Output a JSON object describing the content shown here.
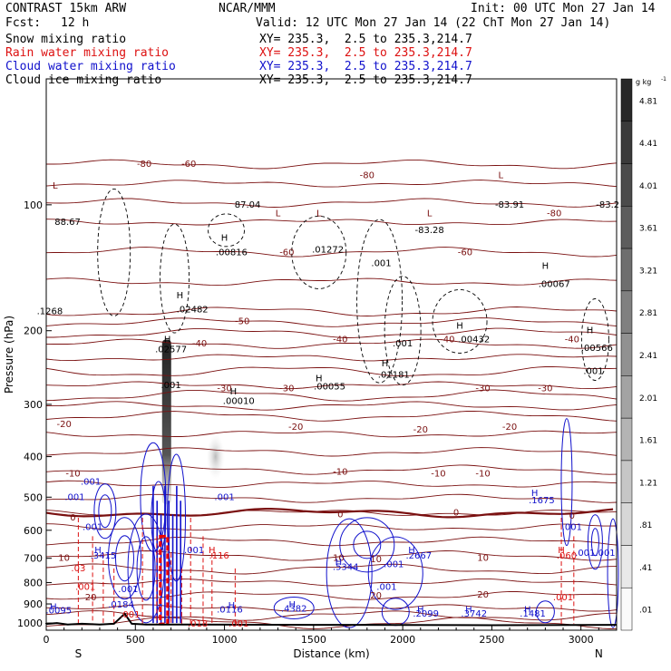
{
  "header": {
    "model": "CONTRAST 15km ARW",
    "fcst_label": "Fcst:",
    "fcst_value": "12 h",
    "center": "NCAR/MMM",
    "init": "Init: 00 UTC Mon 27 Jan 14",
    "valid": "Valid: 12 UTC Mon 27 Jan 14 (22 ChT Mon 27 Jan 14)"
  },
  "fields": [
    {
      "label": "Snow mixing ratio",
      "xy": "XY= 235.3,  2.5 to 235.3,214.7",
      "color": "#000000"
    },
    {
      "label": "Rain water mixing ratio",
      "xy": "XY= 235.3,  2.5 to 235.3,214.7",
      "color": "#dd1111"
    },
    {
      "label": "Cloud water mixing ratio",
      "xy": "XY= 235.3,  2.5 to 235.3,214.7",
      "color": "#1111cc"
    },
    {
      "label": "Cloud ice mixing ratio",
      "xy": "XY= 235.3,  2.5 to 235.3,214.7",
      "color": "#000000"
    }
  ],
  "chart_data": {
    "type": "contour-cross-section",
    "xlabel": "Distance (km)",
    "ylabel": "Pressure (hPa)",
    "xlim": [
      0,
      3200
    ],
    "ylim": [
      1040,
      50
    ],
    "x_ticks": [
      0,
      500,
      1000,
      1500,
      2000,
      2500,
      3000
    ],
    "y_ticks": [
      100,
      200,
      300,
      400,
      500,
      600,
      700,
      800,
      900,
      1000
    ],
    "end_left": "S",
    "end_right": "N",
    "colorbar": {
      "unit": "g kg",
      "unit_exp": "-1",
      "labels": [
        "4.81",
        "4.41",
        "4.01",
        "3.61",
        "3.21",
        "2.81",
        "2.41",
        "2.01",
        "1.61",
        "1.21",
        ".81",
        ".41",
        ".01"
      ]
    },
    "temperature_isotherms": [
      {
        "label": "-80",
        "p": 80
      },
      {
        "label": "-60",
        "p": 110
      },
      {
        "label": "-50",
        "p": 180
      },
      {
        "label": "-40",
        "p": 215
      },
      {
        "label": "-30",
        "p": 270
      },
      {
        "label": "-20",
        "p": 320
      },
      {
        "label": "-10",
        "p": 430
      },
      {
        "label": "0",
        "p": 545
      },
      {
        "label": "10",
        "p": 690
      },
      {
        "label": "20",
        "p": 860
      }
    ],
    "isotherm_labels": [
      {
        "t": "-80",
        "x": 550,
        "p": 80
      },
      {
        "t": "-60",
        "x": 800,
        "p": 80
      },
      {
        "t": "-80",
        "x": 1800,
        "p": 85
      },
      {
        "t": "-80",
        "x": 2850,
        "p": 105
      },
      {
        "t": "-60",
        "x": 1350,
        "p": 130
      },
      {
        "t": "-60",
        "x": 2350,
        "p": 130
      },
      {
        "t": "-50",
        "x": 1100,
        "p": 190
      },
      {
        "t": "-40",
        "x": 860,
        "p": 215
      },
      {
        "t": "-40",
        "x": 1650,
        "p": 210
      },
      {
        "t": "-40",
        "x": 2250,
        "p": 210
      },
      {
        "t": "-40",
        "x": 2950,
        "p": 210
      },
      {
        "t": "-30",
        "x": 1000,
        "p": 275
      },
      {
        "t": "-30",
        "x": 1350,
        "p": 275
      },
      {
        "t": "-30",
        "x": 2450,
        "p": 275
      },
      {
        "t": "-30",
        "x": 2800,
        "p": 275
      },
      {
        "t": "-20",
        "x": 100,
        "p": 335
      },
      {
        "t": "-20",
        "x": 1400,
        "p": 340
      },
      {
        "t": "-20",
        "x": 2100,
        "p": 345
      },
      {
        "t": "-20",
        "x": 2600,
        "p": 340
      },
      {
        "t": "-10",
        "x": 150,
        "p": 440
      },
      {
        "t": "-10",
        "x": 1650,
        "p": 435
      },
      {
        "t": "-10",
        "x": 2200,
        "p": 440
      },
      {
        "t": "-10",
        "x": 2450,
        "p": 440
      },
      {
        "t": "0",
        "x": 150,
        "p": 560
      },
      {
        "t": "0",
        "x": 1650,
        "p": 550
      },
      {
        "t": "0",
        "x": 2300,
        "p": 545
      },
      {
        "t": "0",
        "x": 2950,
        "p": 555
      },
      {
        "t": "10",
        "x": 100,
        "p": 700
      },
      {
        "t": "10",
        "x": 1850,
        "p": 705
      },
      {
        "t": "10",
        "x": 2450,
        "p": 700
      },
      {
        "t": "20",
        "x": 250,
        "p": 870
      },
      {
        "t": "20",
        "x": 1850,
        "p": 860
      },
      {
        "t": "20",
        "x": 2450,
        "p": 855
      }
    ],
    "extrema_labels": [
      {
        "t": "L",
        "x": 50,
        "p": 90,
        "c": "#7a1010"
      },
      {
        "t": "88.67",
        "x": 120,
        "p": 110,
        "c": "#000"
      },
      {
        "t": "L",
        "x": 1530,
        "p": 105,
        "c": "#7a1010"
      },
      {
        "t": "L",
        "x": 2550,
        "p": 85,
        "c": "#7a1010"
      },
      {
        "t": "-83.91",
        "x": 2600,
        "p": 100,
        "c": "#000"
      },
      {
        "t": "-83.2",
        "x": 3150,
        "p": 100,
        "c": "#000"
      },
      {
        "t": "L",
        "x": 1300,
        "p": 105,
        "c": "#7a1010"
      },
      {
        "t": "87.04",
        "x": 1130,
        "p": 100,
        "c": "#000"
      },
      {
        "t": "L",
        "x": 2150,
        "p": 105,
        "c": "#7a1010"
      },
      {
        "t": "-83.28",
        "x": 2150,
        "p": 115,
        "c": "#000"
      },
      {
        "t": "H",
        "x": 1000,
        "p": 120,
        "c": "#000"
      },
      {
        "t": ".00816",
        "x": 1040,
        "p": 130,
        "c": "#000"
      },
      {
        "t": ".01272",
        "x": 1580,
        "p": 128,
        "c": "#000"
      },
      {
        "t": "H",
        "x": 2800,
        "p": 140,
        "c": "#000"
      },
      {
        "t": ".00067",
        "x": 2850,
        "p": 155,
        "c": "#000"
      },
      {
        "t": ".001",
        "x": 1880,
        "p": 138,
        "c": "#000"
      },
      {
        "t": "H",
        "x": 750,
        "p": 165,
        "c": "#000"
      },
      {
        "t": ".02482",
        "x": 820,
        "p": 178,
        "c": "#000"
      },
      {
        "t": ".1268",
        "x": 20,
        "p": 180,
        "c": "#000"
      },
      {
        "t": "H",
        "x": 2320,
        "p": 195,
        "c": "#000"
      },
      {
        "t": ".00432",
        "x": 2400,
        "p": 210,
        "c": "#000"
      },
      {
        "t": "H",
        "x": 3050,
        "p": 200,
        "c": "#000"
      },
      {
        "t": ".00566",
        "x": 3090,
        "p": 220,
        "c": "#000"
      },
      {
        "t": "H",
        "x": 680,
        "p": 210,
        "c": "#000"
      },
      {
        "t": ".02577",
        "x": 700,
        "p": 222,
        "c": "#000"
      },
      {
        "t": ".001",
        "x": 2000,
        "p": 215,
        "c": "#000"
      },
      {
        "t": ".001",
        "x": 3070,
        "p": 250,
        "c": "#000"
      },
      {
        "t": "H",
        "x": 1900,
        "p": 240,
        "c": "#000"
      },
      {
        "t": ".01181",
        "x": 1950,
        "p": 255,
        "c": "#000"
      },
      {
        "t": ".001",
        "x": 700,
        "p": 270,
        "c": "#000"
      },
      {
        "t": "H",
        "x": 1530,
        "p": 260,
        "c": "#000"
      },
      {
        "t": ".00055",
        "x": 1590,
        "p": 272,
        "c": "#000"
      },
      {
        "t": "H",
        "x": 1050,
        "p": 280,
        "c": "#000"
      },
      {
        "t": ".00010",
        "x": 1080,
        "p": 295,
        "c": "#000"
      },
      {
        "t": ".001",
        "x": 250,
        "p": 460,
        "c": "#1111cc"
      },
      {
        "t": ".001",
        "x": 160,
        "p": 500,
        "c": "#1111cc"
      },
      {
        "t": "H",
        "x": 2740,
        "p": 490,
        "c": "#1111cc"
      },
      {
        "t": ".1675",
        "x": 2780,
        "p": 510,
        "c": "#1111cc"
      },
      {
        "t": ".001",
        "x": 1000,
        "p": 500,
        "c": "#1111cc"
      },
      {
        "t": ".001",
        "x": 260,
        "p": 590,
        "c": "#1111cc"
      },
      {
        "t": ".001",
        "x": 2950,
        "p": 590,
        "c": "#1111cc"
      },
      {
        "t": "H",
        "x": 2050,
        "p": 670,
        "c": "#1111cc"
      },
      {
        "t": ".2667",
        "x": 2090,
        "p": 690,
        "c": "#1111cc"
      },
      {
        "t": "H",
        "x": 290,
        "p": 670,
        "c": "#1111cc"
      },
      {
        "t": ".3415",
        "x": 320,
        "p": 690,
        "c": "#1111cc"
      },
      {
        "t": ".001",
        "x": 830,
        "p": 670,
        "c": "#1111cc"
      },
      {
        "t": "H",
        "x": 930,
        "p": 670,
        "c": "#dd1111"
      },
      {
        "t": ".116",
        "x": 970,
        "p": 690,
        "c": "#dd1111"
      },
      {
        "t": "H",
        "x": 2890,
        "p": 670,
        "c": "#dd1111"
      },
      {
        "t": ".060",
        "x": 2920,
        "p": 690,
        "c": "#dd1111"
      },
      {
        "t": ".001.001",
        "x": 3080,
        "p": 680,
        "c": "#1111cc"
      },
      {
        "t": "10",
        "x": 1640,
        "p": 700,
        "c": "#7a1010"
      },
      {
        "t": "H",
        "x": 1640,
        "p": 715,
        "c": "#1111cc"
      },
      {
        "t": ".5344",
        "x": 1680,
        "p": 735,
        "c": "#1111cc"
      },
      {
        "t": ".001",
        "x": 1950,
        "p": 725,
        "c": "#1111cc"
      },
      {
        "t": ".03",
        "x": 180,
        "p": 740,
        "c": "#dd1111"
      },
      {
        "t": ".001",
        "x": 220,
        "p": 820,
        "c": "#dd1111"
      },
      {
        "t": ".001",
        "x": 460,
        "p": 830,
        "c": "#1111cc"
      },
      {
        "t": ".001",
        "x": 1910,
        "p": 820,
        "c": "#1111cc"
      },
      {
        "t": ".001",
        "x": 2900,
        "p": 870,
        "c": "#dd1111"
      },
      {
        "t": "H",
        "x": 40,
        "p": 915,
        "c": "#1111cc"
      },
      {
        "t": ".0095",
        "x": 70,
        "p": 935,
        "c": "#1111cc"
      },
      {
        "t": ".0184",
        "x": 420,
        "p": 905,
        "c": "#1111cc"
      },
      {
        "t": ".001",
        "x": 470,
        "p": 955,
        "c": "#dd1111"
      },
      {
        "t": "H",
        "x": 1040,
        "p": 910,
        "c": "#1111cc"
      },
      {
        "t": ".0116",
        "x": 1030,
        "p": 930,
        "c": "#1111cc"
      },
      {
        "t": "H",
        "x": 1380,
        "p": 905,
        "c": "#1111cc"
      },
      {
        "t": ".4382",
        "x": 1390,
        "p": 925,
        "c": "#1111cc"
      },
      {
        "t": "H",
        "x": 2100,
        "p": 930,
        "c": "#1111cc"
      },
      {
        "t": ".2099",
        "x": 2130,
        "p": 950,
        "c": "#1111cc"
      },
      {
        "t": "H",
        "x": 2370,
        "p": 930,
        "c": "#1111cc"
      },
      {
        "t": ".3742",
        "x": 2400,
        "p": 950,
        "c": "#1111cc"
      },
      {
        "t": "H",
        "x": 2700,
        "p": 930,
        "c": "#1111cc"
      },
      {
        "t": ".1481",
        "x": 2730,
        "p": 950,
        "c": "#1111cc"
      },
      {
        "t": ".018",
        "x": 850,
        "p": 1005,
        "c": "#dd1111"
      },
      {
        "t": ".001",
        "x": 1080,
        "p": 1005,
        "c": "#dd1111"
      }
    ]
  }
}
